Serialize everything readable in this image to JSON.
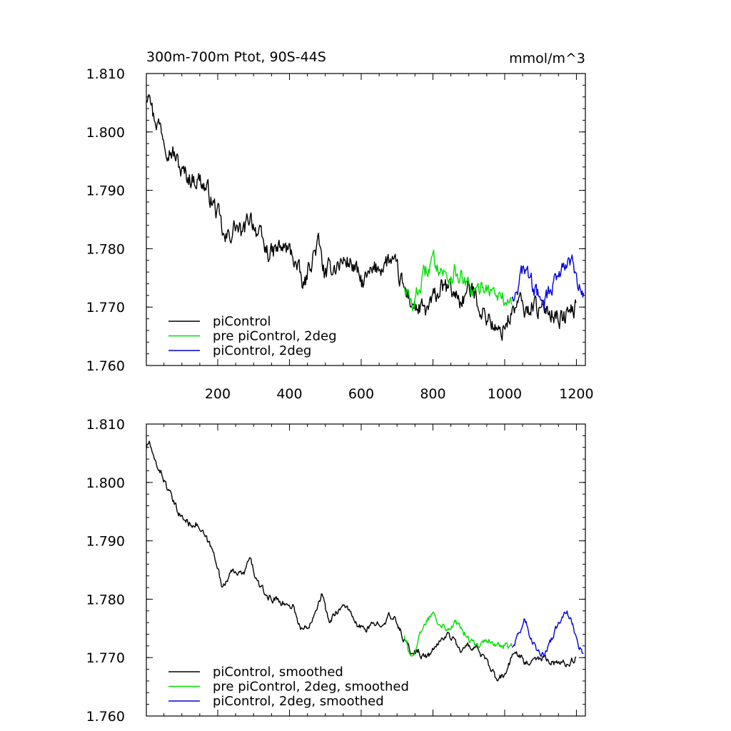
{
  "chart_data": [
    {
      "type": "line",
      "title": "300m-700m Ptot, 90S-44S",
      "units": "mmol/m^3",
      "xlabel": "",
      "ylabel": "",
      "xlim": [
        1,
        1225
      ],
      "ylim": [
        1.76,
        1.81
      ],
      "x_ticks": [
        200,
        400,
        600,
        800,
        1000,
        1200
      ],
      "x_tick_labels": [
        "200",
        "400",
        "600",
        "800",
        "1000",
        "1200"
      ],
      "y_ticks": [
        1.76,
        1.77,
        1.78,
        1.79,
        1.8,
        1.81
      ],
      "y_tick_labels": [
        "1.760",
        "1.770",
        "1.780",
        "1.790",
        "1.800",
        "1.810"
      ],
      "legend_position": "bottom-left",
      "grid": false,
      "series": [
        {
          "name": "piControl",
          "color": "#000000",
          "noise": 0.0014,
          "points": [
            [
              1,
              1.806
            ],
            [
              10,
              1.809
            ],
            [
              20,
              1.803
            ],
            [
              40,
              1.801
            ],
            [
              60,
              1.798
            ],
            [
              80,
              1.796
            ],
            [
              100,
              1.793
            ],
            [
              130,
              1.792
            ],
            [
              150,
              1.792
            ],
            [
              170,
              1.79
            ],
            [
              200,
              1.786
            ],
            [
              220,
              1.781
            ],
            [
              250,
              1.784
            ],
            [
              270,
              1.782
            ],
            [
              290,
              1.786
            ],
            [
              310,
              1.783
            ],
            [
              330,
              1.78
            ],
            [
              350,
              1.779
            ],
            [
              370,
              1.78
            ],
            [
              390,
              1.78
            ],
            [
              410,
              1.779
            ],
            [
              440,
              1.773
            ],
            [
              460,
              1.778
            ],
            [
              480,
              1.781
            ],
            [
              500,
              1.775
            ],
            [
              520,
              1.777
            ],
            [
              560,
              1.778
            ],
            [
              580,
              1.777
            ],
            [
              600,
              1.774
            ],
            [
              620,
              1.775
            ],
            [
              650,
              1.777
            ],
            [
              680,
              1.778
            ],
            [
              700,
              1.776
            ],
            [
              720,
              1.773
            ],
            [
              750,
              1.77
            ],
            [
              780,
              1.769
            ],
            [
              800,
              1.771
            ],
            [
              820,
              1.773
            ],
            [
              850,
              1.773
            ],
            [
              880,
              1.771
            ],
            [
              900,
              1.773
            ],
            [
              920,
              1.772
            ],
            [
              940,
              1.769
            ],
            [
              960,
              1.768
            ],
            [
              980,
              1.765
            ],
            [
              1000,
              1.767
            ],
            [
              1020,
              1.769
            ],
            [
              1040,
              1.771
            ],
            [
              1060,
              1.769
            ],
            [
              1080,
              1.771
            ],
            [
              1100,
              1.769
            ],
            [
              1120,
              1.77
            ],
            [
              1140,
              1.769
            ],
            [
              1160,
              1.768
            ],
            [
              1180,
              1.769
            ],
            [
              1200,
              1.77
            ]
          ]
        },
        {
          "name": "pre piControl, 2deg",
          "color": "#00dd00",
          "noise": 0.0012,
          "points": [
            [
              720,
              1.774
            ],
            [
              740,
              1.77
            ],
            [
              760,
              1.773
            ],
            [
              780,
              1.776
            ],
            [
              800,
              1.778
            ],
            [
              820,
              1.777
            ],
            [
              840,
              1.775
            ],
            [
              860,
              1.776
            ],
            [
              880,
              1.775
            ],
            [
              900,
              1.773
            ],
            [
              920,
              1.772
            ],
            [
              940,
              1.774
            ],
            [
              960,
              1.773
            ],
            [
              980,
              1.772
            ],
            [
              1000,
              1.771
            ],
            [
              1020,
              1.771
            ]
          ]
        },
        {
          "name": "piControl, 2deg",
          "color": "#0000dd",
          "noise": 0.0012,
          "points": [
            [
              1020,
              1.772
            ],
            [
              1040,
              1.774
            ],
            [
              1055,
              1.777
            ],
            [
              1070,
              1.775
            ],
            [
              1090,
              1.772
            ],
            [
              1110,
              1.771
            ],
            [
              1130,
              1.773
            ],
            [
              1150,
              1.776
            ],
            [
              1170,
              1.778
            ],
            [
              1190,
              1.777
            ],
            [
              1205,
              1.773
            ],
            [
              1220,
              1.772
            ]
          ]
        }
      ]
    },
    {
      "type": "line",
      "title": "",
      "xlabel": "",
      "ylabel": "",
      "xlim": [
        1,
        1225
      ],
      "ylim": [
        1.76,
        1.81
      ],
      "y_ticks": [
        1.76,
        1.77,
        1.78,
        1.79,
        1.8,
        1.81
      ],
      "y_tick_labels": [
        "1.760",
        "1.770",
        "1.780",
        "1.790",
        "1.800",
        "1.810"
      ],
      "legend_position": "bottom-left",
      "grid": false,
      "series": [
        {
          "name": "piControl, smoothed",
          "color": "#000000",
          "noise": 0.0005,
          "points": [
            [
              1,
              1.806
            ],
            [
              10,
              1.807
            ],
            [
              20,
              1.804
            ],
            [
              40,
              1.802
            ],
            [
              60,
              1.799
            ],
            [
              80,
              1.796
            ],
            [
              100,
              1.794
            ],
            [
              120,
              1.793
            ],
            [
              140,
              1.793
            ],
            [
              160,
              1.791
            ],
            [
              180,
              1.789
            ],
            [
              200,
              1.786
            ],
            [
              210,
              1.782
            ],
            [
              230,
              1.784
            ],
            [
              250,
              1.785
            ],
            [
              270,
              1.784
            ],
            [
              290,
              1.787
            ],
            [
              310,
              1.783
            ],
            [
              330,
              1.781
            ],
            [
              350,
              1.78
            ],
            [
              370,
              1.78
            ],
            [
              390,
              1.779
            ],
            [
              410,
              1.779
            ],
            [
              430,
              1.775
            ],
            [
              450,
              1.775
            ],
            [
              470,
              1.778
            ],
            [
              490,
              1.781
            ],
            [
              510,
              1.776
            ],
            [
              530,
              1.778
            ],
            [
              560,
              1.779
            ],
            [
              580,
              1.776
            ],
            [
              600,
              1.775
            ],
            [
              620,
              1.775
            ],
            [
              650,
              1.776
            ],
            [
              680,
              1.777
            ],
            [
              700,
              1.776
            ],
            [
              720,
              1.773
            ],
            [
              740,
              1.771
            ],
            [
              760,
              1.771
            ],
            [
              780,
              1.77
            ],
            [
              800,
              1.771
            ],
            [
              820,
              1.773
            ],
            [
              840,
              1.774
            ],
            [
              860,
              1.773
            ],
            [
              880,
              1.771
            ],
            [
              900,
              1.772
            ],
            [
              920,
              1.772
            ],
            [
              940,
              1.77
            ],
            [
              960,
              1.768
            ],
            [
              980,
              1.766
            ],
            [
              1000,
              1.767
            ],
            [
              1020,
              1.77
            ],
            [
              1040,
              1.771
            ],
            [
              1060,
              1.769
            ],
            [
              1080,
              1.77
            ],
            [
              1100,
              1.77
            ],
            [
              1120,
              1.77
            ],
            [
              1140,
              1.769
            ],
            [
              1160,
              1.769
            ],
            [
              1180,
              1.769
            ],
            [
              1200,
              1.77
            ]
          ]
        },
        {
          "name": "pre piControl, 2deg, smoothed",
          "color": "#00dd00",
          "noise": 0.0005,
          "points": [
            [
              720,
              1.774
            ],
            [
              740,
              1.77
            ],
            [
              760,
              1.773
            ],
            [
              780,
              1.776
            ],
            [
              800,
              1.778
            ],
            [
              820,
              1.776
            ],
            [
              840,
              1.775
            ],
            [
              860,
              1.776
            ],
            [
              880,
              1.775
            ],
            [
              900,
              1.773
            ],
            [
              920,
              1.772
            ],
            [
              940,
              1.773
            ],
            [
              960,
              1.773
            ],
            [
              980,
              1.772
            ],
            [
              1000,
              1.772
            ],
            [
              1020,
              1.772
            ]
          ]
        },
        {
          "name": "piControl, 2deg, smoothed",
          "color": "#0000dd",
          "noise": 0.0005,
          "points": [
            [
              1020,
              1.772
            ],
            [
              1040,
              1.774
            ],
            [
              1055,
              1.777
            ],
            [
              1070,
              1.774
            ],
            [
              1090,
              1.771
            ],
            [
              1110,
              1.771
            ],
            [
              1130,
              1.773
            ],
            [
              1150,
              1.776
            ],
            [
              1170,
              1.778
            ],
            [
              1190,
              1.776
            ],
            [
              1205,
              1.772
            ],
            [
              1220,
              1.771
            ]
          ]
        }
      ]
    }
  ]
}
